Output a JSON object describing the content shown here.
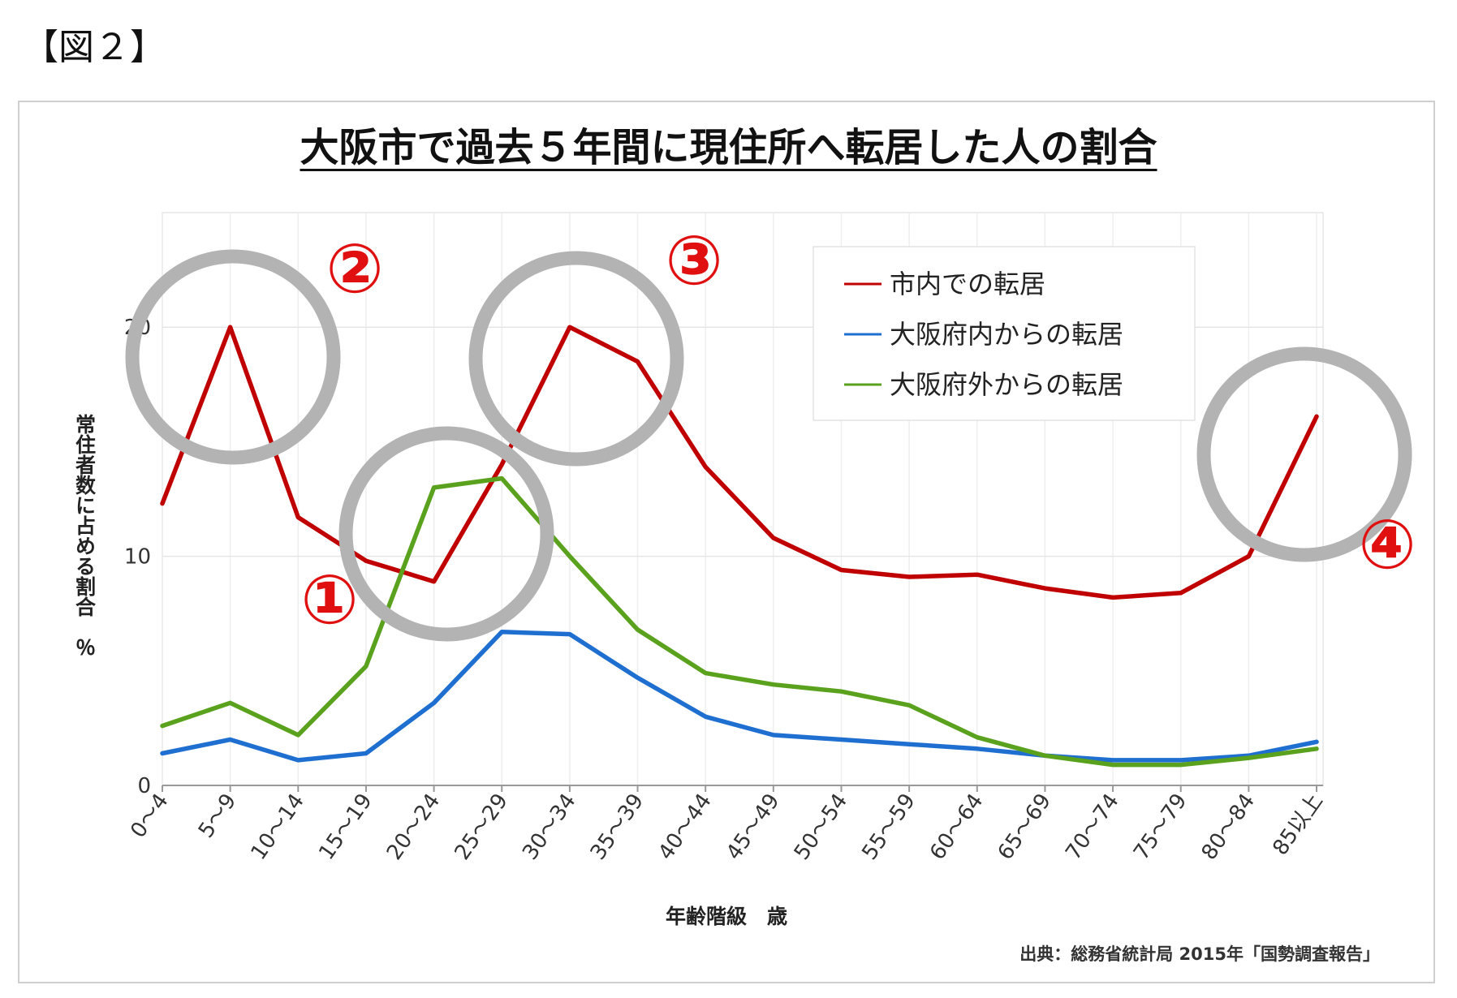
{
  "figure_label": "【図２】",
  "source": "出典：総務省統計局 2015年「国勢調査報告」",
  "callouts": [
    "①",
    "②",
    "③",
    "④"
  ],
  "colors": {
    "red": "#c00000",
    "blue": "#1f6fd1",
    "green": "#5aa21d",
    "circle": "#b3b3b3",
    "callout": "#e01010"
  },
  "chart_data": {
    "type": "line",
    "title": "大阪市で過去５年間に現住所へ転居した人の割合",
    "xlabel": "年齢階級　歳",
    "ylabel": "常住者数に占める割合　％",
    "ylim": [
      0,
      25
    ],
    "ytick_labels": [
      "0",
      "10",
      "20"
    ],
    "yticks": [
      0,
      10,
      20
    ],
    "grid": true,
    "legend_position": "top-right",
    "categories": [
      "0～4",
      "5～9",
      "10～14",
      "15～19",
      "20～24",
      "25～29",
      "30～34",
      "35～39",
      "40～44",
      "45～49",
      "50～54",
      "55～59",
      "60～64",
      "65～69",
      "70～74",
      "75～79",
      "80～84",
      "85以上"
    ],
    "series": [
      {
        "name": "市内での転居",
        "color": "#c00000",
        "values": [
          12.3,
          20.0,
          11.7,
          9.8,
          8.9,
          14.0,
          20.0,
          18.5,
          13.9,
          10.8,
          9.4,
          9.1,
          9.2,
          8.6,
          8.2,
          8.4,
          10.0,
          16.1
        ]
      },
      {
        "name": "大阪府内からの転居",
        "color": "#1f6fd1",
        "values": [
          1.4,
          2.0,
          1.1,
          1.4,
          3.6,
          6.7,
          6.6,
          4.7,
          3.0,
          2.2,
          2.0,
          1.8,
          1.6,
          1.3,
          1.1,
          1.1,
          1.3,
          1.9
        ]
      },
      {
        "name": "大阪府外からの転居",
        "color": "#5aa21d",
        "values": [
          2.6,
          3.6,
          2.2,
          5.2,
          13.0,
          13.4,
          10.0,
          6.8,
          4.9,
          4.4,
          4.1,
          3.5,
          2.1,
          1.3,
          0.9,
          0.9,
          1.2,
          1.6
        ]
      }
    ]
  }
}
